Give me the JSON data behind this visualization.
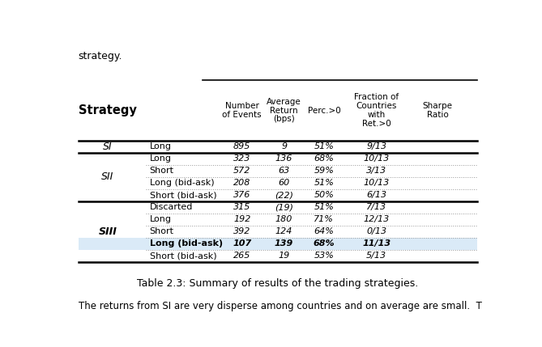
{
  "title": "Table 2.3: Summary of results of the trading strategies.",
  "rows": [
    [
      "SI",
      "Long",
      "895",
      "9",
      "51%",
      "9/13"
    ],
    [
      "SII",
      "Long",
      "323",
      "136",
      "68%",
      "10/13"
    ],
    [
      "SII",
      "Short",
      "572",
      "63",
      "59%",
      "3/13"
    ],
    [
      "SII",
      "Long (bid-ask)",
      "208",
      "60",
      "51%",
      "10/13"
    ],
    [
      "SII",
      "Short (bid-ask)",
      "376",
      "(22)",
      "50%",
      "6/13"
    ],
    [
      "SIII",
      "Discarted",
      "315",
      "(19)",
      "51%",
      "7/13"
    ],
    [
      "SIII",
      "Long",
      "192",
      "180",
      "71%",
      "12/13"
    ],
    [
      "SIII",
      "Short",
      "392",
      "124",
      "64%",
      "0/13"
    ],
    [
      "SIII",
      "Long (bid-ask)",
      "107",
      "139",
      "68%",
      "11/13"
    ],
    [
      "SIII",
      "Short (bid-ask)",
      "265",
      "19",
      "53%",
      "5/13"
    ]
  ],
  "highlighted_rows": [
    8
  ],
  "strategy_spans": {
    "SI": [
      0,
      0
    ],
    "SII": [
      1,
      4
    ],
    "SIII": [
      5,
      9
    ]
  },
  "thick_line_after": [
    0,
    4
  ],
  "dotted_line_after": [
    1,
    2,
    3,
    5,
    6,
    7,
    8
  ],
  "highlight_color": "#daeaf7",
  "bg_color": "#ffffff",
  "text_color": "#000000",
  "top_text": "strategy.",
  "bottom_text": "The returns from SI are very disperse among countries and on average are small.  T",
  "col_header_lines": [
    [
      "Number",
      "of Events"
    ],
    [
      "Average",
      "Return",
      "(bps)"
    ],
    [
      "Perc.>0"
    ],
    [
      "Fraction of",
      "Countries",
      "with",
      "Ret.>0"
    ],
    [
      "Sharpe",
      "Ratio"
    ]
  ]
}
